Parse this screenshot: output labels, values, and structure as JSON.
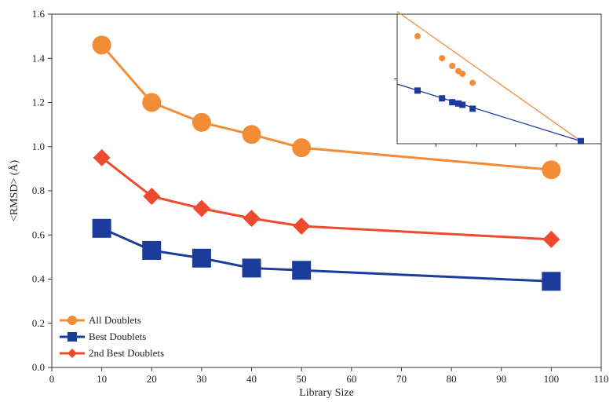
{
  "chart_data": {
    "type": "line",
    "title": "",
    "xlabel": "Library Size",
    "ylabel": "<RMSD> (Å)",
    "xlim": [
      0,
      110
    ],
    "ylim": [
      0,
      1.6
    ],
    "xticks": [
      0,
      10,
      20,
      30,
      40,
      50,
      60,
      70,
      80,
      90,
      100,
      110
    ],
    "yticks": [
      "0.0",
      "0.2",
      "0.4",
      "0.6",
      "0.8",
      "1.0",
      "1.2",
      "1.4",
      "1.6"
    ],
    "grid": false,
    "legend_position": "bottom-left",
    "x": [
      10,
      20,
      30,
      40,
      50,
      100
    ],
    "series": [
      {
        "name": "All Doublets",
        "marker": "circle",
        "color": "#F28C36",
        "values": [
          1.46,
          1.2,
          1.11,
          1.055,
          0.995,
          0.895
        ]
      },
      {
        "name": "Best Doublets",
        "marker": "square",
        "color": "#1C3C9C",
        "values": [
          0.63,
          0.53,
          0.495,
          0.45,
          0.44,
          0.39
        ]
      },
      {
        "name": "2nd Best Doublets",
        "marker": "diamond",
        "color": "#EE4A2E",
        "values": [
          0.95,
          0.775,
          0.72,
          0.675,
          0.64,
          0.58
        ]
      }
    ],
    "inset": {
      "description_visible": false,
      "series": [
        {
          "color": "#F28C36",
          "points": [
            [
              0.1,
              0.83
            ],
            [
              0.22,
              0.66
            ],
            [
              0.27,
              0.6
            ],
            [
              0.3,
              0.56
            ],
            [
              0.32,
              0.54
            ],
            [
              0.37,
              0.47
            ]
          ],
          "fit_start": [
            0.0,
            1.02
          ],
          "fit_end": [
            0.9,
            0.02
          ]
        },
        {
          "color": "#1C3C9C",
          "points": [
            [
              0.1,
              0.41
            ],
            [
              0.22,
              0.35
            ],
            [
              0.27,
              0.32
            ],
            [
              0.3,
              0.31
            ],
            [
              0.32,
              0.3
            ],
            [
              0.37,
              0.27
            ],
            [
              0.9,
              0.02
            ]
          ],
          "fit_start": [
            0.0,
            0.46
          ],
          "fit_end": [
            0.9,
            0.02
          ]
        }
      ]
    }
  }
}
